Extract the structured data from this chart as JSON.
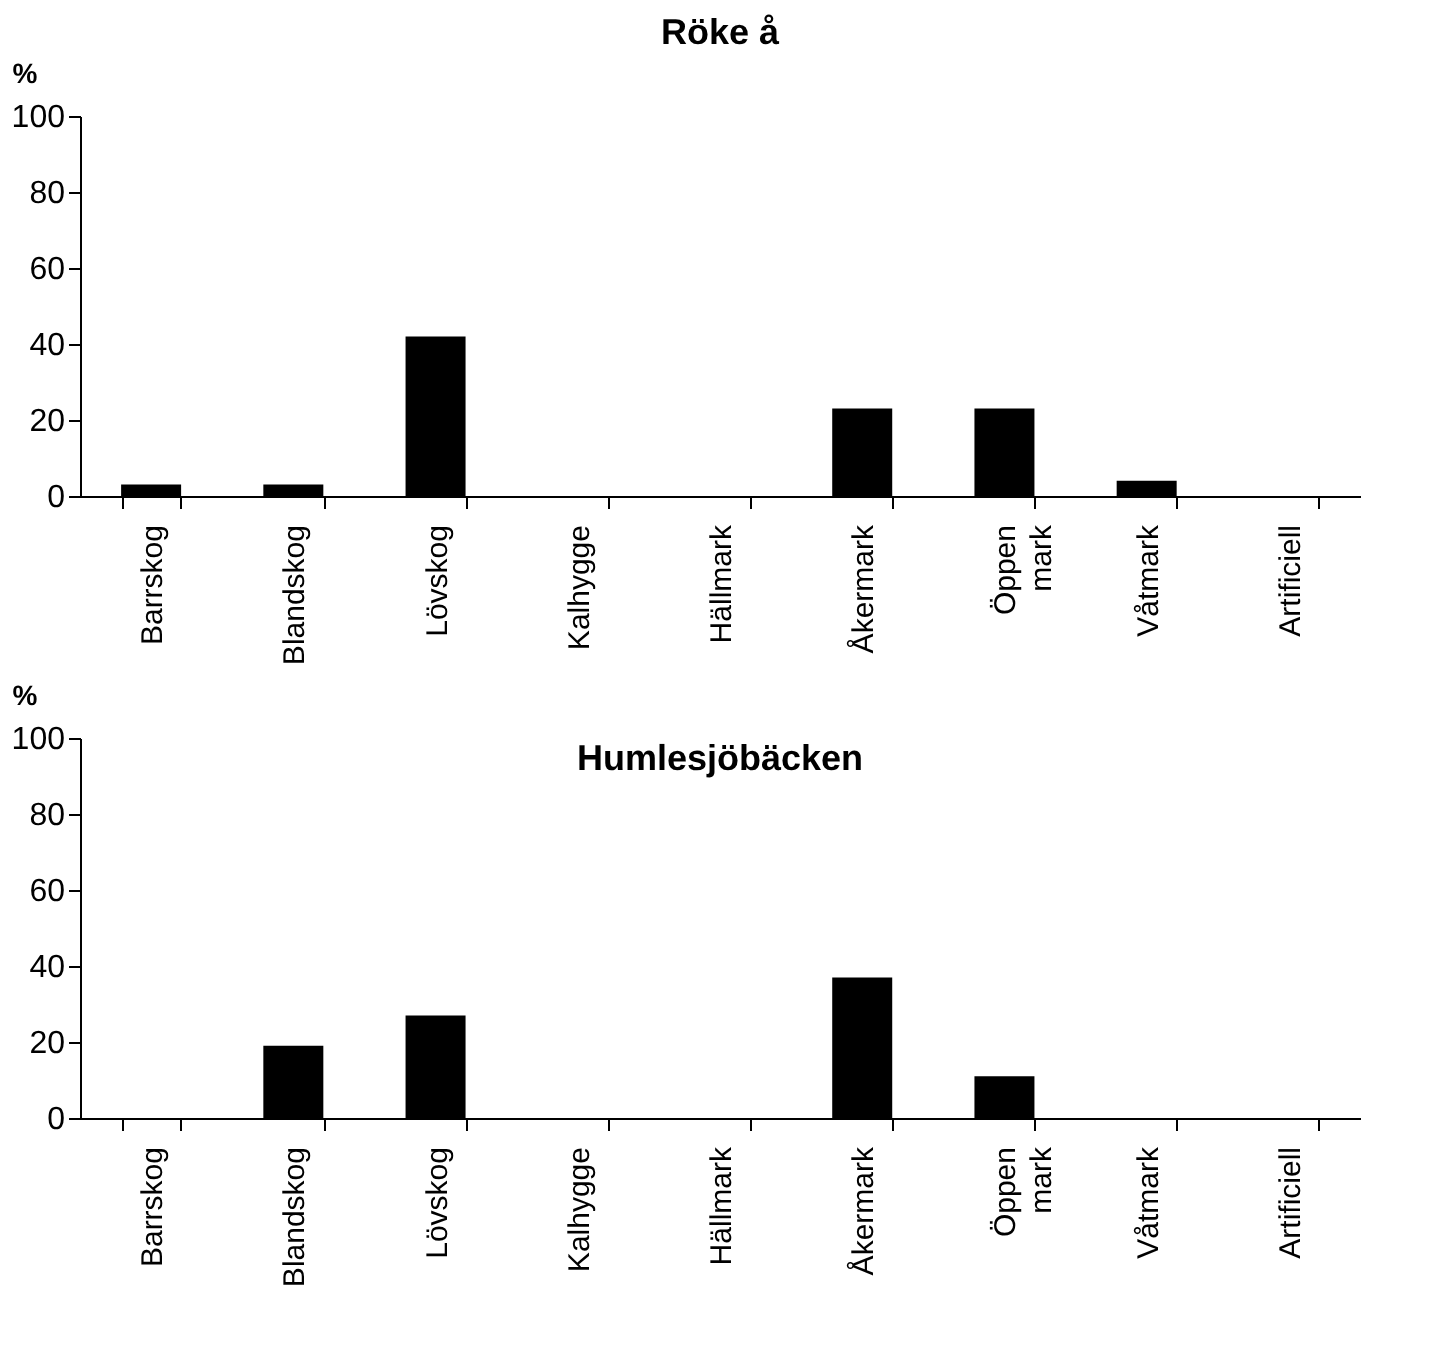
{
  "chart_data": [
    {
      "type": "bar",
      "title": "Röke å",
      "ylabel": "%",
      "categories": [
        "Barrskog",
        "Blandskog",
        "Lövskog",
        "Kalhygge",
        "Hällmark",
        "Åkermark",
        "Öppen mark",
        "Våtmark",
        "Artificiell"
      ],
      "values": [
        3,
        3,
        42,
        0,
        0,
        23,
        23,
        4,
        0
      ],
      "color": "#000000",
      "ylim": [
        0,
        100
      ],
      "yticks": [
        0,
        20,
        40,
        60,
        80,
        100
      ],
      "grid": false
    },
    {
      "type": "bar",
      "title": "Humlesjöbäcken",
      "ylabel": "%",
      "categories": [
        "Barrskog",
        "Blandskog",
        "Lövskog",
        "Kalhygge",
        "Hällmark",
        "Åkermark",
        "Öppen mark",
        "Våtmark",
        "Artificiell"
      ],
      "values": [
        0,
        19,
        27,
        0,
        0,
        37,
        11,
        0,
        0
      ],
      "color": "#000000",
      "ylim": [
        0,
        100
      ],
      "yticks": [
        0,
        20,
        40,
        60,
        80,
        100
      ],
      "grid": false
    }
  ]
}
